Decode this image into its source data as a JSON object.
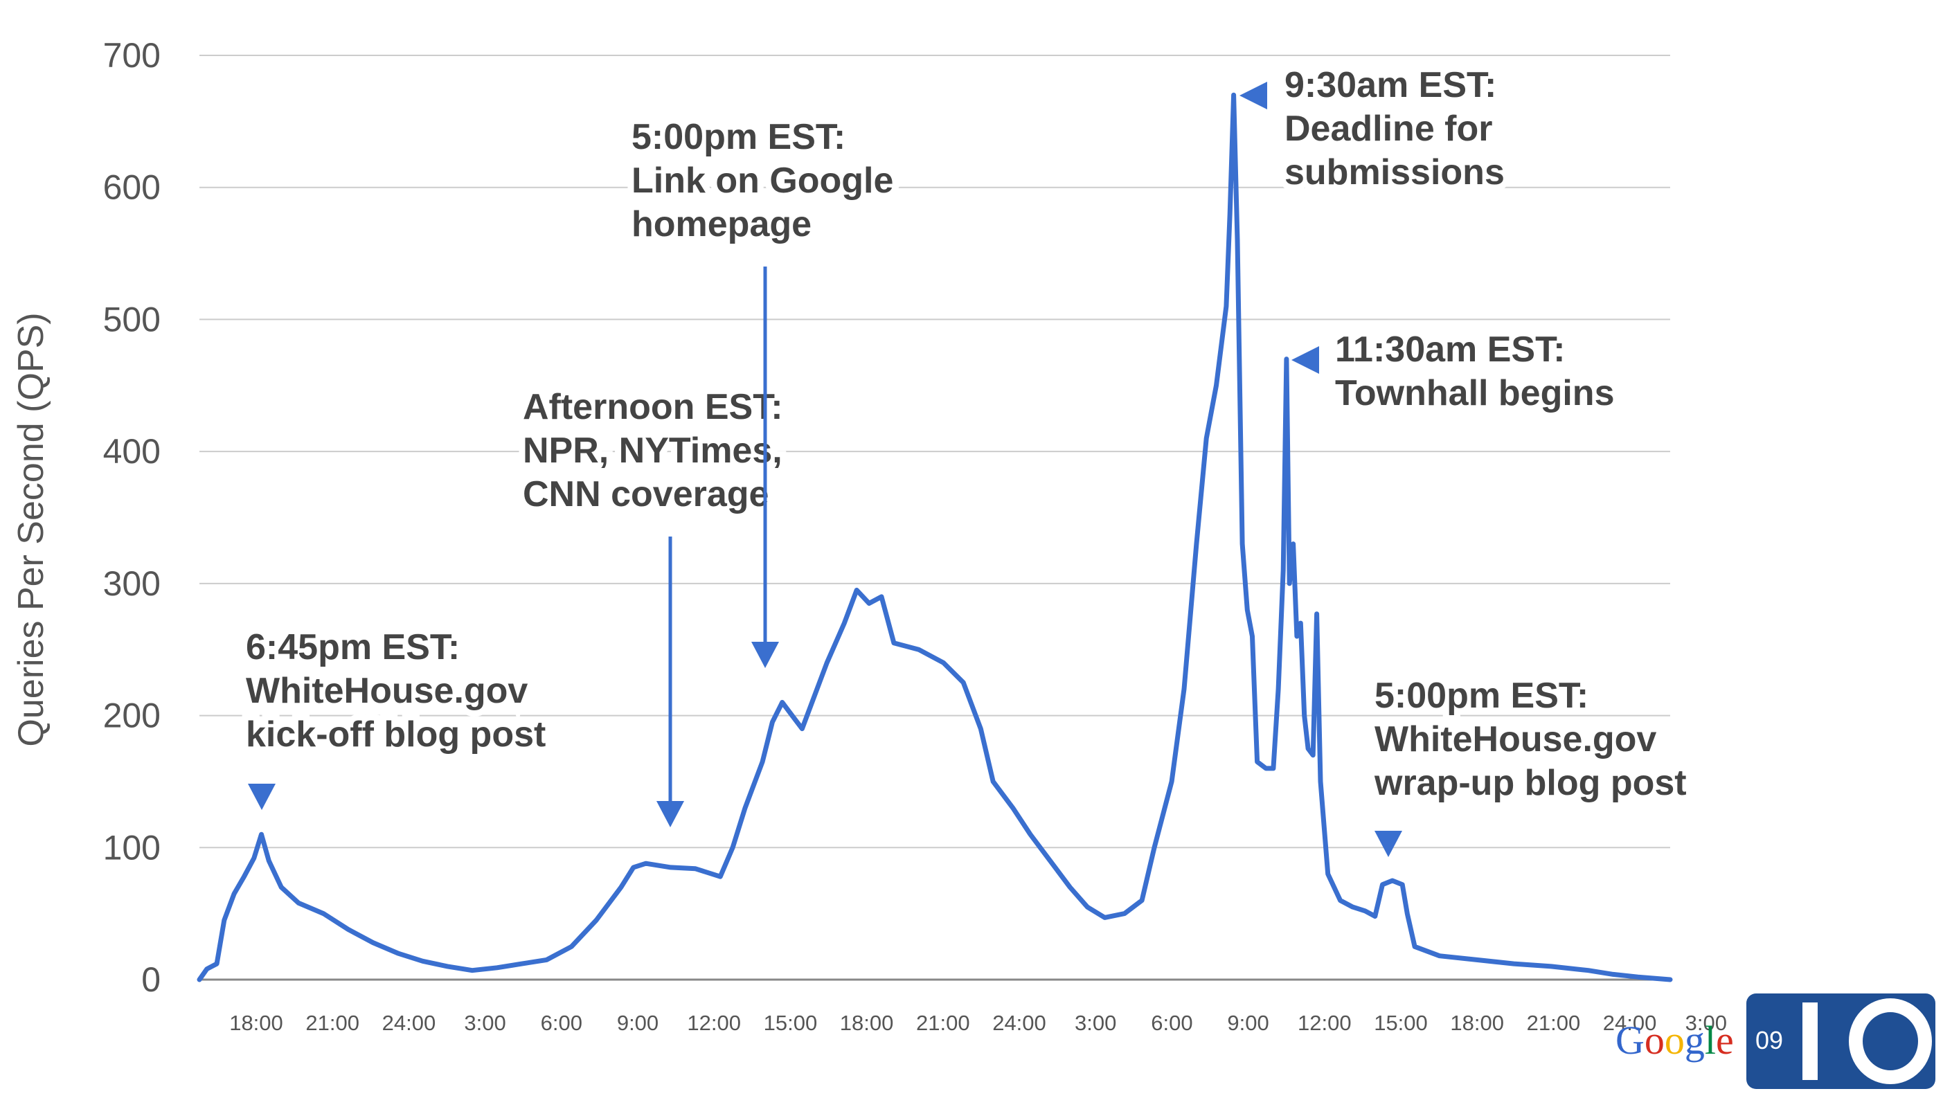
{
  "chart_data": {
    "type": "line",
    "title": "",
    "ylabel": "Queries Per Second (QPS)",
    "xlabel": "",
    "ylim": [
      0,
      700
    ],
    "yticks": [
      "0",
      "100",
      "200",
      "300",
      "400",
      "500",
      "600",
      "700"
    ],
    "xticks": [
      "18:00",
      "21:00",
      "24:00",
      "3:00",
      "6:00",
      "9:00",
      "12:00",
      "15:00",
      "18:00",
      "21:00",
      "24:00",
      "3:00",
      "6:00",
      "9:00",
      "12:00",
      "15:00",
      "18:00",
      "21:00",
      "24:00",
      "3:00"
    ],
    "x_start_hour": 15.5,
    "grid": true,
    "legend": "none",
    "series": [
      {
        "color": "#3a6fcf",
        "points": [
          [
            15.5,
            0
          ],
          [
            15.8,
            8
          ],
          [
            16.2,
            12
          ],
          [
            16.5,
            45
          ],
          [
            16.9,
            65
          ],
          [
            17.3,
            78
          ],
          [
            17.7,
            92
          ],
          [
            18.0,
            110
          ],
          [
            18.3,
            90
          ],
          [
            18.8,
            70
          ],
          [
            19.5,
            58
          ],
          [
            20.5,
            50
          ],
          [
            21.5,
            38
          ],
          [
            22.5,
            28
          ],
          [
            23.5,
            20
          ],
          [
            24.5,
            14
          ],
          [
            25.5,
            10
          ],
          [
            26.5,
            7
          ],
          [
            27.5,
            9
          ],
          [
            28.5,
            12
          ],
          [
            29.5,
            15
          ],
          [
            30.5,
            25
          ],
          [
            31.5,
            45
          ],
          [
            32.5,
            70
          ],
          [
            33.0,
            85
          ],
          [
            33.5,
            88
          ],
          [
            34.5,
            85
          ],
          [
            35.5,
            84
          ],
          [
            36.5,
            78
          ],
          [
            37.0,
            100
          ],
          [
            37.5,
            130
          ],
          [
            38.2,
            165
          ],
          [
            38.6,
            195
          ],
          [
            39.0,
            210
          ],
          [
            39.4,
            200
          ],
          [
            39.8,
            190
          ],
          [
            40.2,
            210
          ],
          [
            40.8,
            240
          ],
          [
            41.5,
            270
          ],
          [
            42.0,
            295
          ],
          [
            42.5,
            285
          ],
          [
            43.0,
            290
          ],
          [
            43.5,
            255
          ],
          [
            44.5,
            250
          ],
          [
            45.5,
            240
          ],
          [
            46.3,
            225
          ],
          [
            47.0,
            190
          ],
          [
            47.5,
            150
          ],
          [
            48.3,
            130
          ],
          [
            49.0,
            110
          ],
          [
            49.8,
            90
          ],
          [
            50.6,
            70
          ],
          [
            51.3,
            55
          ],
          [
            52.0,
            47
          ],
          [
            52.8,
            50
          ],
          [
            53.5,
            60
          ],
          [
            54.0,
            100
          ],
          [
            54.7,
            150
          ],
          [
            55.2,
            220
          ],
          [
            55.7,
            330
          ],
          [
            56.1,
            410
          ],
          [
            56.5,
            450
          ],
          [
            56.9,
            510
          ],
          [
            57.05,
            580
          ],
          [
            57.2,
            670
          ],
          [
            57.35,
            560
          ],
          [
            57.55,
            330
          ],
          [
            57.75,
            280
          ],
          [
            57.95,
            260
          ],
          [
            58.15,
            165
          ],
          [
            58.5,
            160
          ],
          [
            58.8,
            160
          ],
          [
            59.0,
            220
          ],
          [
            59.2,
            310
          ],
          [
            59.33,
            470
          ],
          [
            59.45,
            300
          ],
          [
            59.6,
            330
          ],
          [
            59.75,
            260
          ],
          [
            59.9,
            270
          ],
          [
            60.05,
            200
          ],
          [
            60.2,
            175
          ],
          [
            60.4,
            170
          ],
          [
            60.55,
            277
          ],
          [
            60.7,
            150
          ],
          [
            61.0,
            80
          ],
          [
            61.5,
            60
          ],
          [
            62.0,
            55
          ],
          [
            62.5,
            52
          ],
          [
            62.9,
            48
          ],
          [
            63.2,
            72
          ],
          [
            63.6,
            75
          ],
          [
            64.0,
            72
          ],
          [
            64.2,
            50
          ],
          [
            64.5,
            25
          ],
          [
            65.5,
            18
          ],
          [
            67.0,
            15
          ],
          [
            68.5,
            12
          ],
          [
            70.0,
            10
          ],
          [
            71.5,
            7
          ],
          [
            72.5,
            4
          ],
          [
            73.5,
            2
          ],
          [
            74.8,
            0
          ]
        ]
      }
    ],
    "annotations": [
      {
        "lines": [
          "6:45pm EST:",
          "WhiteHouse.gov",
          "kick-off blog post"
        ],
        "x": 18.0,
        "y": 110,
        "arrow": "down"
      },
      {
        "lines": [
          "Afternoon EST:",
          "NPR, NYTimes,",
          "CNN coverage"
        ],
        "x": 36.0,
        "y": 110,
        "arrow": "down"
      },
      {
        "lines": [
          "5:00pm EST:",
          "Link on Google",
          "homepage"
        ],
        "x": 39.8,
        "y": 235,
        "arrow": "down"
      },
      {
        "lines": [
          "9:30am EST:",
          "Deadline for",
          "submissions"
        ],
        "x": 57.2,
        "y": 670,
        "arrow": "left"
      },
      {
        "lines": [
          "11:30am EST:",
          "Townhall begins"
        ],
        "x": 59.33,
        "y": 470,
        "arrow": "left"
      },
      {
        "lines": [
          "5:00pm EST:",
          "WhiteHouse.gov",
          "wrap-up blog post"
        ],
        "x": 63.4,
        "y": 95,
        "arrow": "down"
      }
    ]
  },
  "logo": {
    "google_letters": [
      {
        "ch": "G",
        "color": "#3366cc"
      },
      {
        "ch": "o",
        "color": "#d62d20"
      },
      {
        "ch": "o",
        "color": "#f4b400"
      },
      {
        "ch": "g",
        "color": "#3366cc"
      },
      {
        "ch": "l",
        "color": "#008744"
      },
      {
        "ch": "e",
        "color": "#d62d20"
      }
    ],
    "year": "09",
    "io_text": "IO",
    "badge_color": "#1f4f94"
  }
}
